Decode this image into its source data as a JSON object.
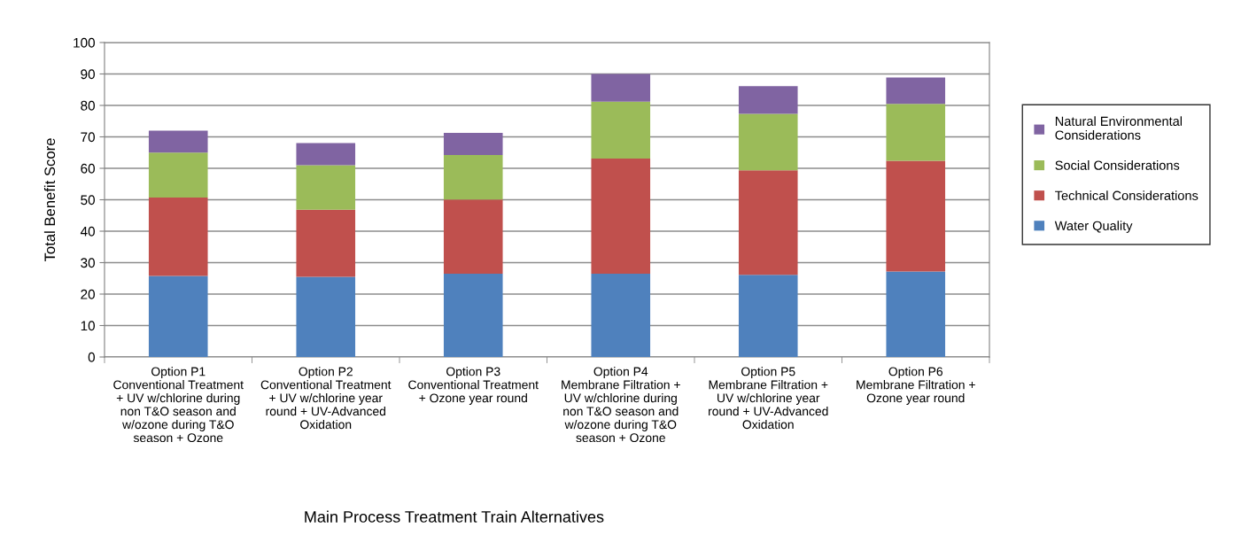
{
  "chart_data": {
    "type": "bar",
    "stacked": true,
    "xlabel": "Main Process Treatment Train Alternatives",
    "ylabel": "Total Benefit Score",
    "categories": [
      "Option P1\nConventional Treatment\n+ UV w/chlorine during\nnon T&O season and\nw/ozone during T&O\nseason + Ozone",
      "Option P2\nConventional Treatment\n+ UV w/chlorine year\nround + UV-Advanced\nOxidation",
      "Option P3\nConventional Treatment\n+ Ozone year round",
      "Option P4\nMembrane Filtration +\nUV w/chlorine during\nnon T&O season and\nw/ozone during T&O\nseason + Ozone",
      "Option P5\nMembrane Filtration +\nUV w/chlorine year\nround + UV-Advanced\nOxidation",
      "Option P6\nMembrane Filtration +\nOzone year round"
    ],
    "series": [
      {
        "name": "Water Quality",
        "color": "#4f81bd",
        "values": [
          25.8,
          25.5,
          26.5,
          26.5,
          26.1,
          27.2
        ]
      },
      {
        "name": "Technical Considerations",
        "color": "#c0504d",
        "values": [
          24.9,
          21.3,
          23.6,
          36.6,
          33.3,
          35.2
        ]
      },
      {
        "name": "Social Considerations",
        "color": "#9bbb59",
        "values": [
          14.3,
          14.2,
          14.1,
          18.1,
          17.9,
          18.1
        ]
      },
      {
        "name": "Natural Environmental\nConsiderations",
        "color": "#8064a2",
        "values": [
          7.0,
          7.0,
          7.1,
          8.8,
          8.8,
          8.4
        ]
      }
    ],
    "ylim": [
      0,
      100
    ],
    "yticks": [
      0,
      10,
      20,
      30,
      40,
      50,
      60,
      70,
      80,
      90,
      100
    ],
    "grid": "y",
    "legend": "right"
  }
}
